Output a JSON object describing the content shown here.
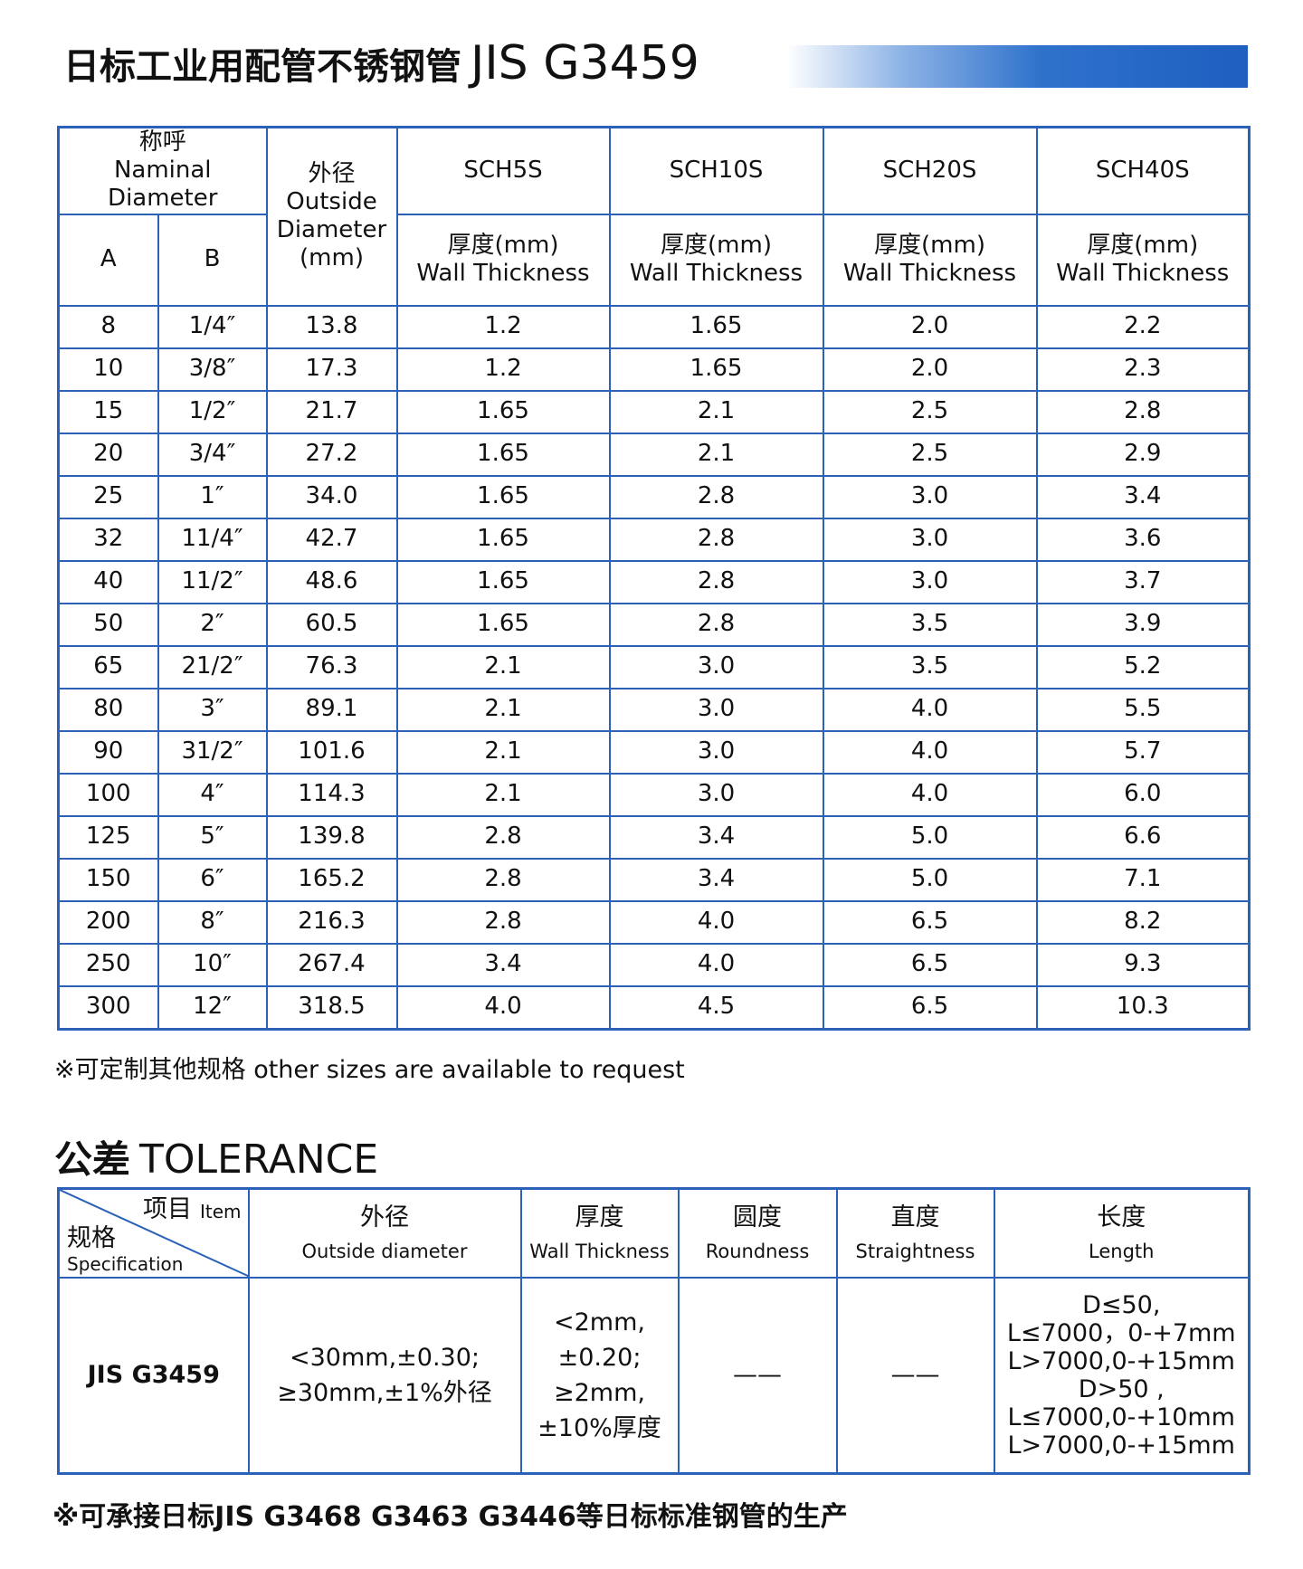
{
  "header": {
    "title_cn": "日标工业用配管不锈钢管",
    "title_en": "JIS G3459"
  },
  "table": {
    "nominal_cn": "称呼",
    "nominal_en": "Naminal Diameter",
    "col_a": "A",
    "col_b": "B",
    "od_cn": "外径",
    "od_en": [
      "Outside",
      "Diameter",
      "(mm)"
    ],
    "schedules": [
      "SCH5S",
      "SCH10S",
      "SCH20S",
      "SCH40S"
    ],
    "thickness_cn": "厚度(mm)",
    "thickness_en": "Wall Thickness",
    "rows": [
      [
        "8",
        "1/4″",
        "13.8",
        "1.2",
        "1.65",
        "2.0",
        "2.2"
      ],
      [
        "10",
        "3/8″",
        "17.3",
        "1.2",
        "1.65",
        "2.0",
        "2.3"
      ],
      [
        "15",
        "1/2″",
        "21.7",
        "1.65",
        "2.1",
        "2.5",
        "2.8"
      ],
      [
        "20",
        "3/4″",
        "27.2",
        "1.65",
        "2.1",
        "2.5",
        "2.9"
      ],
      [
        "25",
        "1″",
        "34.0",
        "1.65",
        "2.8",
        "3.0",
        "3.4"
      ],
      [
        "32",
        "11/4″",
        "42.7",
        "1.65",
        "2.8",
        "3.0",
        "3.6"
      ],
      [
        "40",
        "11/2″",
        "48.6",
        "1.65",
        "2.8",
        "3.0",
        "3.7"
      ],
      [
        "50",
        "2″",
        "60.5",
        "1.65",
        "2.8",
        "3.5",
        "3.9"
      ],
      [
        "65",
        "21/2″",
        "76.3",
        "2.1",
        "3.0",
        "3.5",
        "5.2"
      ],
      [
        "80",
        "3″",
        "89.1",
        "2.1",
        "3.0",
        "4.0",
        "5.5"
      ],
      [
        "90",
        "31/2″",
        "101.6",
        "2.1",
        "3.0",
        "4.0",
        "5.7"
      ],
      [
        "100",
        "4″",
        "114.3",
        "2.1",
        "3.0",
        "4.0",
        "6.0"
      ],
      [
        "125",
        "5″",
        "139.8",
        "2.8",
        "3.4",
        "5.0",
        "6.6"
      ],
      [
        "150",
        "6″",
        "165.2",
        "2.8",
        "3.4",
        "5.0",
        "7.1"
      ],
      [
        "200",
        "8″",
        "216.3",
        "2.8",
        "4.0",
        "6.5",
        "8.2"
      ],
      [
        "250",
        "10″",
        "267.4",
        "3.4",
        "4.0",
        "6.5",
        "9.3"
      ],
      [
        "300",
        "12″",
        "318.5",
        "4.0",
        "4.5",
        "6.5",
        "10.3"
      ]
    ]
  },
  "note": "※可定制其他规格 other sizes are available to request",
  "tolerance": {
    "title_cn": "公差",
    "title_en": "TOLERANCE",
    "item_cn": "项目",
    "item_en": "Item",
    "spec_cn": "规格",
    "spec_en": "Specification",
    "columns": [
      {
        "cn": "外径",
        "en": "Outside diameter"
      },
      {
        "cn": "厚度",
        "en": "Wall Thickness"
      },
      {
        "cn": "圆度",
        "en": "Roundness"
      },
      {
        "cn": "直度",
        "en": "Straightness"
      },
      {
        "cn": "长度",
        "en": "Length"
      }
    ],
    "row": {
      "spec": "JIS G3459",
      "cells": [
        [
          "<30mm,±0.30;",
          "≥30mm,±1%外径"
        ],
        [
          "<2mm,",
          "±0.20;",
          "≥2mm,",
          "±10%厚度"
        ],
        [
          "——"
        ],
        [
          "——"
        ],
        [
          "D≤50,",
          "L≤7000，0-+7mm",
          "L>7000,0-+15mm",
          "D>50 ,",
          "L≤7000,0-+10mm",
          "L>7000,0-+15mm"
        ]
      ]
    }
  },
  "footer": "※可承接日标JIS G3468 G3463 G3446等日标标准钢管的生产"
}
